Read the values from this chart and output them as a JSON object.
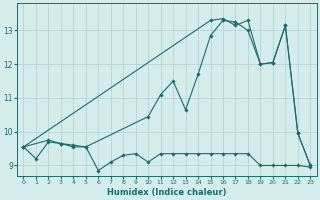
{
  "xlabel": "Humidex (Indice chaleur)",
  "ylabel": "",
  "bg_color": "#d4ecec",
  "line_color": "#1a6b6b",
  "grid_color": "#b0d0d0",
  "xlim": [
    -0.5,
    23.5
  ],
  "ylim": [
    8.7,
    13.8
  ],
  "xticks": [
    0,
    1,
    2,
    3,
    4,
    5,
    6,
    7,
    8,
    9,
    10,
    11,
    12,
    13,
    14,
    15,
    16,
    17,
    18,
    19,
    20,
    21,
    22,
    23
  ],
  "yticks": [
    9,
    10,
    11,
    12,
    13
  ],
  "line1_x": [
    0,
    1,
    2,
    3,
    4,
    5,
    6,
    7,
    8,
    9,
    10,
    11,
    12,
    13,
    14,
    15,
    16,
    17,
    18,
    19,
    20,
    21,
    22,
    23
  ],
  "line1_y": [
    9.55,
    9.2,
    9.7,
    9.65,
    9.55,
    9.55,
    8.85,
    9.1,
    9.3,
    9.35,
    9.1,
    9.35,
    9.35,
    9.35,
    9.35,
    9.35,
    9.35,
    9.35,
    9.35,
    9.0,
    9.0,
    9.0,
    9.0,
    8.95
  ],
  "line2_x": [
    0,
    2,
    3,
    4,
    5,
    10,
    11,
    12,
    13,
    14,
    15,
    16,
    17,
    18,
    19,
    20,
    21,
    22,
    23
  ],
  "line2_y": [
    9.55,
    9.75,
    9.65,
    9.6,
    9.55,
    10.45,
    11.1,
    11.5,
    10.65,
    11.7,
    12.85,
    13.3,
    13.25,
    13.0,
    12.0,
    12.05,
    13.15,
    9.95,
    9.0
  ],
  "line3_x": [
    0,
    15,
    16,
    17,
    18,
    19,
    20,
    21,
    22,
    23
  ],
  "line3_y": [
    9.55,
    13.3,
    13.35,
    13.15,
    13.3,
    12.0,
    12.05,
    13.15,
    9.95,
    9.0
  ]
}
